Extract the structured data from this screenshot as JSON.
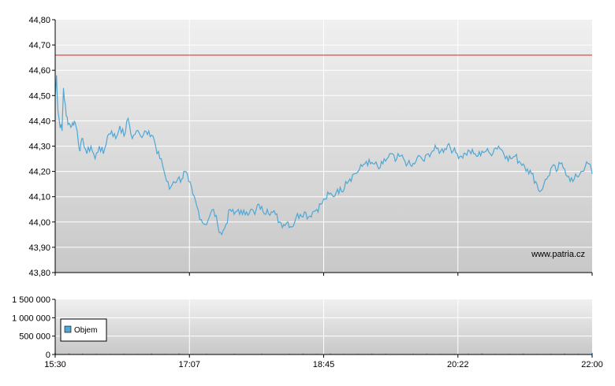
{
  "chart_data": [
    {
      "type": "line",
      "ylim": [
        43.8,
        44.8
      ],
      "yticks": [
        "44,80",
        "44,70",
        "44,60",
        "44,50",
        "44,40",
        "44,30",
        "44,20",
        "44,10",
        "44,00",
        "43,90",
        "43,80"
      ],
      "xlim_minutes": [
        930,
        1320
      ],
      "reference_line": 44.66,
      "watermark": "www.patria.cz",
      "grid": true,
      "colors": {
        "series": "#4fa7d4",
        "reference": "#d42b2b",
        "plot_top": "#f0f0f0",
        "plot_bottom": "#c8c8c8"
      },
      "series": [
        {
          "x_minutes": [
            930,
            931,
            932,
            933,
            935,
            936,
            938,
            940,
            942,
            944,
            946,
            948,
            950,
            953,
            956,
            959,
            962,
            965,
            968,
            971,
            974,
            977,
            980,
            983,
            986,
            989,
            992,
            995,
            998,
            1001,
            1004,
            1007,
            1010,
            1013,
            1016,
            1019,
            1022,
            1024,
            1027,
            1030,
            1033,
            1036,
            1039,
            1042,
            1045,
            1048,
            1051,
            1054,
            1057,
            1060,
            1063,
            1066,
            1069,
            1072,
            1075,
            1078,
            1081,
            1084,
            1087,
            1090,
            1093,
            1096,
            1099,
            1102,
            1105,
            1108,
            1111,
            1114,
            1117,
            1120,
            1123,
            1126,
            1129,
            1132,
            1135,
            1138,
            1141,
            1144,
            1147,
            1150,
            1153,
            1156,
            1159,
            1162,
            1165,
            1168,
            1171,
            1174,
            1177,
            1180,
            1183,
            1186,
            1189,
            1192,
            1195,
            1198,
            1201,
            1204,
            1207,
            1210,
            1213,
            1216,
            1219,
            1222,
            1225,
            1228,
            1231,
            1234,
            1237,
            1240,
            1243,
            1246,
            1249,
            1252,
            1255,
            1258,
            1261,
            1264,
            1267,
            1270,
            1273,
            1276,
            1279,
            1282,
            1285,
            1288,
            1291,
            1294,
            1297,
            1300,
            1303,
            1306,
            1309,
            1312,
            1315,
            1318,
            1320
          ],
          "values": [
            44.5,
            44.58,
            44.44,
            44.4,
            44.36,
            44.53,
            44.42,
            44.39,
            44.38,
            44.4,
            44.36,
            44.28,
            44.33,
            44.27,
            44.3,
            44.25,
            44.3,
            44.27,
            44.34,
            44.36,
            44.33,
            44.38,
            44.34,
            44.41,
            44.33,
            44.36,
            44.34,
            44.36,
            44.36,
            44.34,
            44.27,
            44.25,
            44.18,
            44.13,
            44.16,
            44.17,
            44.17,
            44.2,
            44.16,
            44.11,
            44.06,
            44.01,
            43.99,
            44.02,
            44.05,
            43.99,
            43.95,
            43.99,
            44.05,
            44.03,
            44.05,
            44.03,
            44.04,
            44.05,
            44.03,
            44.07,
            44.04,
            44.05,
            44.04,
            44.03,
            44.0,
            43.99,
            44.0,
            43.98,
            44.02,
            44.03,
            44.04,
            44.02,
            44.04,
            44.05,
            44.07,
            44.09,
            44.11,
            44.1,
            44.13,
            44.12,
            44.16,
            44.17,
            44.19,
            44.2,
            44.22,
            44.24,
            44.23,
            44.23,
            44.21,
            44.23,
            44.25,
            44.27,
            44.24,
            44.26,
            44.25,
            44.23,
            44.22,
            44.24,
            44.26,
            44.24,
            44.27,
            44.28,
            44.29,
            44.28,
            44.29,
            44.31,
            44.28,
            44.27,
            44.26,
            44.27,
            44.28,
            44.27,
            44.26,
            44.28,
            44.28,
            44.27,
            44.29,
            44.3,
            44.28,
            44.26,
            44.25,
            44.26,
            44.24,
            44.23,
            44.21,
            44.19,
            44.16,
            44.12,
            44.15,
            44.18,
            44.22,
            44.2,
            44.23,
            44.21,
            44.18,
            44.16,
            44.18,
            44.2,
            44.22,
            44.23,
            44.19
          ]
        }
      ]
    },
    {
      "type": "bar",
      "ylim": [
        0,
        1500000
      ],
      "yticks": [
        "1 500 000",
        "1 000 000",
        "500 000",
        "0"
      ],
      "xticks": [
        "15:30",
        "17:07",
        "18:45",
        "20:22",
        "22:00"
      ],
      "xlim_minutes": [
        930,
        1320
      ],
      "grid": true,
      "legend_position": "left",
      "colors": {
        "bars": "#4fa7d4",
        "plot_top": "#f0f0f0",
        "plot_bottom": "#c8c8c8"
      },
      "series": [
        {
          "name": "Objem",
          "x_minutes": [
            930,
            940,
            950,
            960,
            970,
            980,
            990,
            1000,
            1010,
            1020,
            1030,
            1040,
            1050,
            1060,
            1070,
            1080,
            1090,
            1100,
            1110,
            1120,
            1130,
            1140,
            1150,
            1160,
            1170,
            1180,
            1190,
            1200,
            1210,
            1220,
            1230,
            1240,
            1250,
            1260,
            1270,
            1280,
            1290,
            1300,
            1310,
            1320
          ],
          "values": [
            45000,
            30000,
            25000,
            20000,
            15000,
            20000,
            15000,
            30000,
            15000,
            30000,
            15000,
            20000,
            10000,
            20000,
            15000,
            25000,
            15000,
            20000,
            25000,
            20000,
            25000,
            15000,
            20000,
            25000,
            20000,
            15000,
            20000,
            25000,
            15000,
            20000,
            25000,
            30000,
            15000,
            20000,
            25000,
            15000,
            20000,
            25000,
            20000,
            45000
          ]
        }
      ]
    }
  ]
}
